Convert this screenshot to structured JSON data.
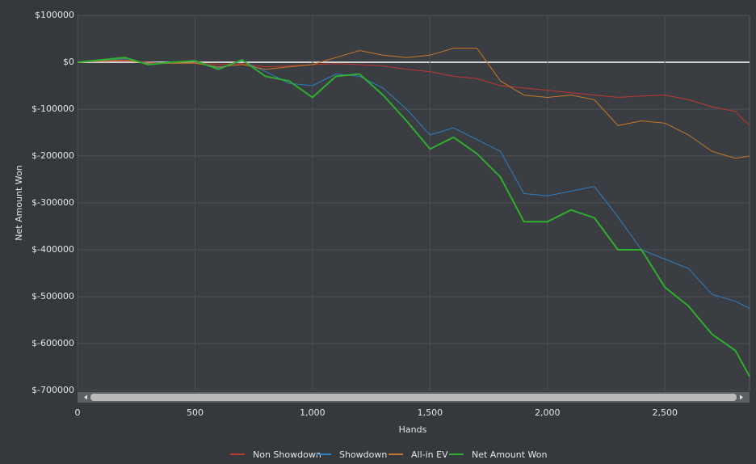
{
  "chart_data": {
    "type": "line",
    "x_label": "Hands",
    "y_label": "Net Amount Won",
    "x": [
      0,
      100,
      200,
      300,
      400,
      500,
      600,
      700,
      800,
      900,
      1000,
      1100,
      1200,
      1300,
      1400,
      1500,
      1600,
      1700,
      1800,
      1900,
      2000,
      2100,
      2200,
      2300,
      2400,
      2500,
      2600,
      2700,
      2800,
      2860
    ],
    "series": [
      {
        "name": "Non Showdown",
        "color": "#c0392f",
        "values": [
          0,
          2000,
          3000,
          0,
          -2000,
          -1000,
          -5000,
          -3000,
          -10000,
          -8000,
          -5000,
          -3000,
          -5000,
          -8000,
          -15000,
          -20000,
          -30000,
          -35000,
          -50000,
          -55000,
          -60000,
          -65000,
          -70000,
          -75000,
          -72000,
          -70000,
          -80000,
          -95000,
          -105000,
          -135000
        ]
      },
      {
        "name": "Showdown",
        "color": "#2f7fc1",
        "values": [
          0,
          3000,
          8000,
          -3000,
          0,
          2000,
          -12000,
          3000,
          -20000,
          -45000,
          -50000,
          -25000,
          -30000,
          -55000,
          -100000,
          -155000,
          -140000,
          -165000,
          -190000,
          -280000,
          -285000,
          -275000,
          -265000,
          -330000,
          -400000,
          -420000,
          -440000,
          -495000,
          -510000,
          -525000
        ]
      },
      {
        "name": "All-in EV",
        "color": "#c7782a",
        "values": [
          0,
          3000,
          5000,
          -3000,
          -2000,
          -2000,
          -10000,
          -5000,
          -15000,
          -10000,
          -5000,
          10000,
          25000,
          15000,
          10000,
          15000,
          30000,
          30000,
          -40000,
          -70000,
          -75000,
          -70000,
          -80000,
          -135000,
          -125000,
          -130000,
          -155000,
          -190000,
          -205000,
          -200000
        ]
      },
      {
        "name": "Net Amount Won",
        "color": "#2fae2f",
        "values": [
          0,
          5000,
          10000,
          -5000,
          0,
          3000,
          -15000,
          5000,
          -30000,
          -40000,
          -75000,
          -30000,
          -25000,
          -70000,
          -125000,
          -185000,
          -160000,
          -195000,
          -245000,
          -340000,
          -340000,
          -315000,
          -332000,
          -400000,
          -400000,
          -480000,
          -520000,
          -580000,
          -615000,
          -670000
        ]
      }
    ],
    "xlim": [
      0,
      2860
    ],
    "xticks": [
      0,
      500,
      {
        "value": 1000,
        "label": "1,000"
      },
      {
        "value": 1500,
        "label": "1,500"
      },
      {
        "value": 2000,
        "label": "2,000"
      },
      {
        "value": 2500,
        "label": "2,500"
      }
    ],
    "ylim": [
      -700000,
      100000
    ],
    "yticks": [
      {
        "value": 100000,
        "label": "$100000"
      },
      {
        "value": 0,
        "label": "$0"
      },
      {
        "value": -100000,
        "label": "$-100000"
      },
      {
        "value": -200000,
        "label": "$-200000"
      },
      {
        "value": -300000,
        "label": "$-300000"
      },
      {
        "value": -400000,
        "label": "$-400000"
      },
      {
        "value": -500000,
        "label": "$-500000"
      },
      {
        "value": -600000,
        "label": "$-600000"
      },
      {
        "value": -700000,
        "label": "$-700000"
      }
    ],
    "grid": true,
    "legend": "bottom"
  }
}
